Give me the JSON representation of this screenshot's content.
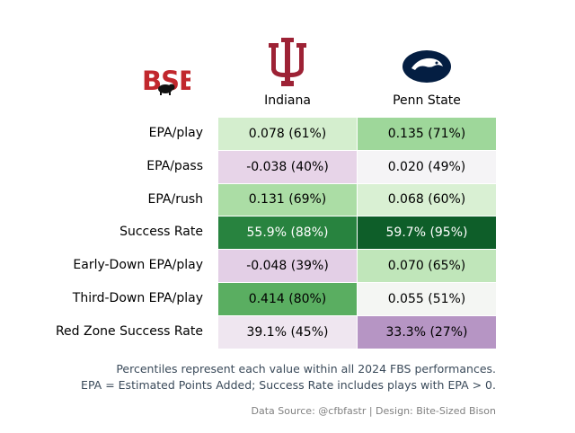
{
  "logo": {
    "text": "BSB",
    "color": "#c1272d"
  },
  "teams": [
    {
      "name": "Indiana",
      "logo_color": "#9d2235"
    },
    {
      "name": "Penn State",
      "logo_color": "#041e42"
    }
  ],
  "chart_data": {
    "type": "table",
    "columns": [
      "Indiana",
      "Penn State"
    ],
    "rows": [
      {
        "metric": "EPA/play",
        "cells": [
          {
            "text": "0.078 (61%)",
            "percentile": 61
          },
          {
            "text": "0.135 (71%)",
            "percentile": 71
          }
        ]
      },
      {
        "metric": "EPA/pass",
        "cells": [
          {
            "text": "-0.038 (40%)",
            "percentile": 40
          },
          {
            "text": "0.020 (49%)",
            "percentile": 49
          }
        ]
      },
      {
        "metric": "EPA/rush",
        "cells": [
          {
            "text": "0.131 (69%)",
            "percentile": 69
          },
          {
            "text": "0.068 (60%)",
            "percentile": 60
          }
        ]
      },
      {
        "metric": "Success Rate",
        "cells": [
          {
            "text": "55.9% (88%)",
            "percentile": 88
          },
          {
            "text": "59.7% (95%)",
            "percentile": 95
          }
        ]
      },
      {
        "metric": "Early-Down EPA/play",
        "cells": [
          {
            "text": "-0.048 (39%)",
            "percentile": 39
          },
          {
            "text": "0.070 (65%)",
            "percentile": 65
          }
        ]
      },
      {
        "metric": "Third-Down EPA/play",
        "cells": [
          {
            "text": "0.414 (80%)",
            "percentile": 80
          },
          {
            "text": "0.055 (51%)",
            "percentile": 51
          }
        ]
      },
      {
        "metric": "Red Zone Success Rate",
        "cells": [
          {
            "text": "39.1% (45%)",
            "percentile": 45
          },
          {
            "text": "33.3% (27%)",
            "percentile": 27
          }
        ]
      }
    ],
    "colormap": "PRGn"
  },
  "notes": {
    "line1": "Percentiles represent each value within all 2024 FBS performances.",
    "line2": "EPA = Estimated Points Added; Success Rate includes plays with EPA > 0.",
    "source": "Data Source: @cfbfastr | Design: Bite-Sized Bison"
  }
}
